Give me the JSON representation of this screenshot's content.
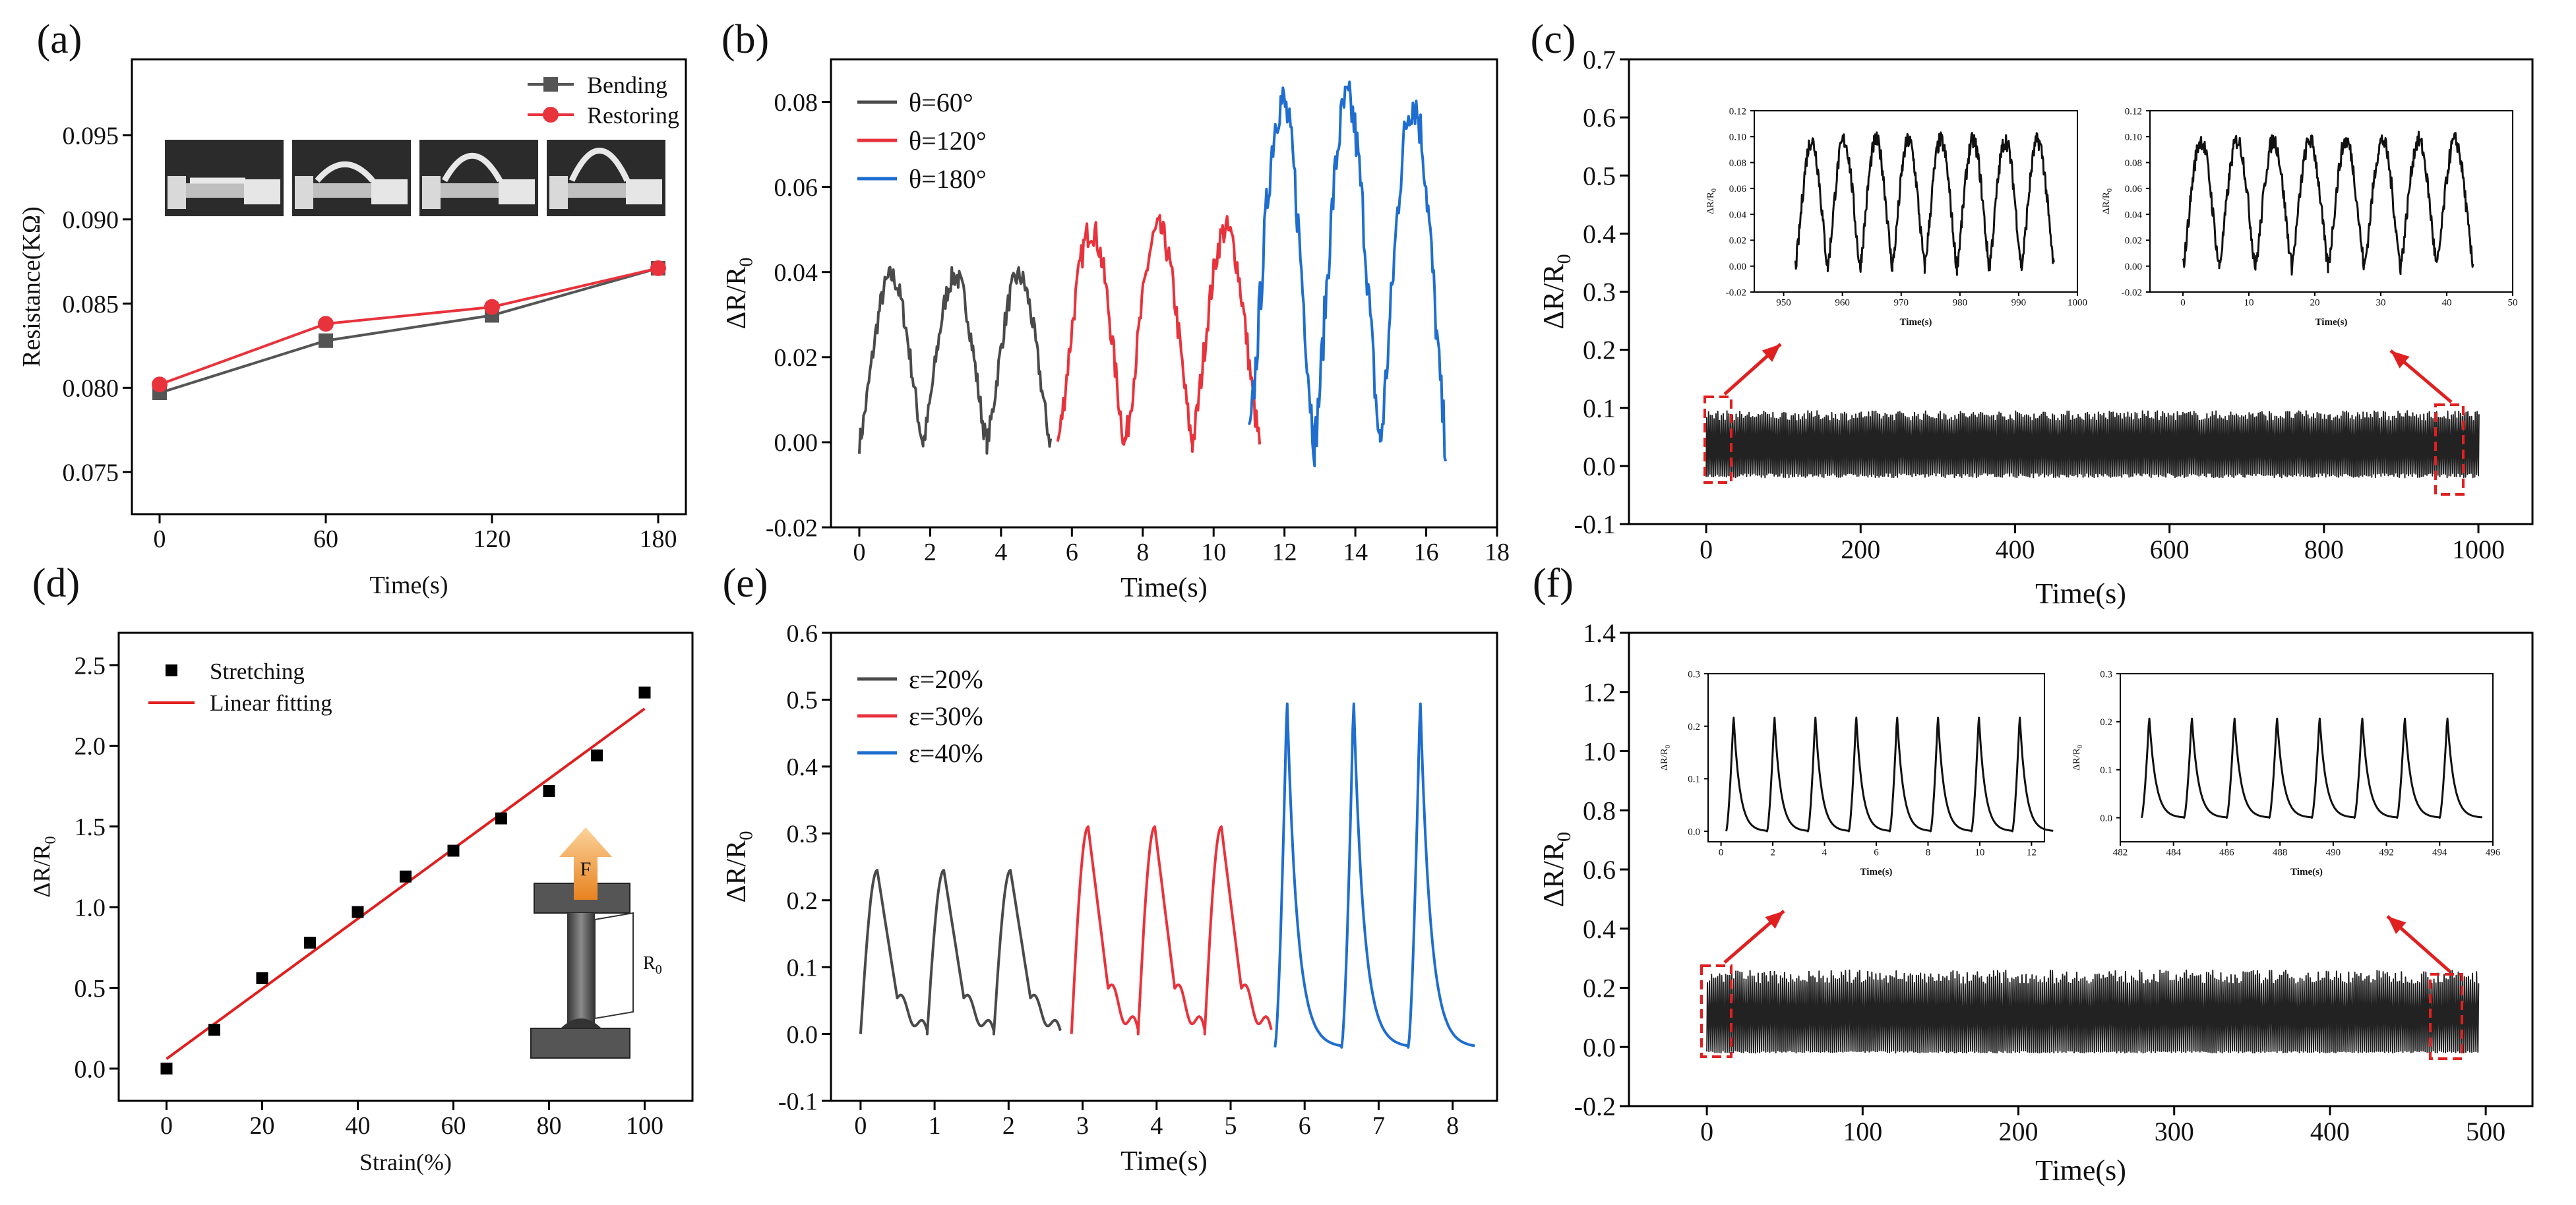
{
  "colors": {
    "black": "#222222",
    "dark_gray": "#4a4a4a",
    "red": "#e8333c",
    "blue": "#1f6ecf",
    "bend_gray": "#555555",
    "fit_red": "#e01f1f",
    "callout_red": "#e02020"
  },
  "chart_data": [
    {
      "panel": "(a)",
      "type": "line",
      "xlabel": "Time(s)",
      "ylabel": "Resistance(KΩ)",
      "xlim": [
        -10,
        190
      ],
      "ylim": [
        0.0725,
        0.0995
      ],
      "xticks": [
        0,
        60,
        120,
        180
      ],
      "yticks": [
        0.075,
        0.08,
        0.085,
        0.09,
        0.095
      ],
      "ytick_labels": [
        "0.075",
        "0.080",
        "0.085",
        "0.090",
        "0.095"
      ],
      "legend_position": "top-right",
      "inset_photos": 4,
      "series": [
        {
          "name": "Bending",
          "marker": "square",
          "color": "#555555",
          "x": [
            0,
            60,
            120,
            180
          ],
          "values": [
            0.0797,
            0.0828,
            0.0843,
            0.0871
          ]
        },
        {
          "name": "Restoring",
          "marker": "circle",
          "color": "#e8333c",
          "x": [
            0,
            60,
            120,
            180
          ],
          "values": [
            0.0802,
            0.0838,
            0.0848,
            0.0871
          ]
        }
      ]
    },
    {
      "panel": "(b)",
      "type": "line",
      "xlabel": "Time(s)",
      "ylabel": "ΔR/R0",
      "xlim": [
        -0.8,
        18
      ],
      "ylim": [
        -0.02,
        0.09
      ],
      "xticks": [
        0,
        2,
        4,
        6,
        8,
        10,
        12,
        14,
        16,
        18
      ],
      "yticks": [
        -0.02,
        0.0,
        0.02,
        0.04,
        0.06,
        0.08
      ],
      "ytick_labels": [
        "-0.02",
        "0.00",
        "0.02",
        "0.04",
        "0.06",
        "0.08"
      ],
      "legend_position": "top-left",
      "series": [
        {
          "name": "θ=60°",
          "color": "#4a4a4a",
          "t0": 0.0,
          "period": 1.8,
          "peaks": 3,
          "peak": 0.039,
          "base": 0.0
        },
        {
          "name": "θ=120°",
          "color": "#e8333c",
          "t0": 5.6,
          "period": 1.9,
          "peaks": 3,
          "peak": 0.05,
          "base": 0.0
        },
        {
          "name": "θ=180°",
          "color": "#1f6ecf",
          "t0": 11.0,
          "period": 1.85,
          "peaks": 3,
          "peak": 0.08,
          "base": 0.0
        }
      ]
    },
    {
      "panel": "(c)",
      "type": "line",
      "xlabel": "Time(s)",
      "ylabel": "ΔR/R0",
      "xlim": [
        -100,
        1070
      ],
      "ylim": [
        -0.1,
        0.7
      ],
      "xticks": [
        0,
        200,
        400,
        600,
        800,
        1000
      ],
      "yticks": [
        -0.1,
        0.0,
        0.1,
        0.2,
        0.3,
        0.4,
        0.5,
        0.6,
        0.7
      ],
      "ytick_labels": [
        "-0.1",
        "0.0",
        "0.1",
        "0.2",
        "0.3",
        "0.4",
        "0.5",
        "0.6",
        "0.7"
      ],
      "series": [
        {
          "name": "",
          "color": "#222222",
          "x_range": [
            0,
            1000
          ],
          "min": -0.02,
          "max": 0.095
        }
      ],
      "insets": [
        {
          "xlabel": "Time(s)",
          "ylabel": "ΔR/R0",
          "xlim": [
            945,
            1000
          ],
          "ylim": [
            -0.02,
            0.12
          ],
          "xticks": [
            950,
            960,
            970,
            980,
            990,
            1000
          ],
          "yticks": [
            -0.02,
            0.0,
            0.02,
            0.04,
            0.06,
            0.08,
            0.1,
            0.12
          ],
          "ytick_labels": [
            "-0.02",
            "0.00",
            "0.02",
            "0.04",
            "0.06",
            "0.08",
            "0.10",
            "0.12"
          ],
          "t0": 952,
          "period": 5.5,
          "peaks": 8,
          "peak": 0.097
        },
        {
          "xlabel": "Time(s)",
          "ylabel": "ΔR/R0",
          "xlim": [
            -5,
            50
          ],
          "ylim": [
            -0.02,
            0.12
          ],
          "xticks": [
            0,
            10,
            20,
            30,
            40,
            50
          ],
          "yticks": [
            -0.02,
            0.0,
            0.02,
            0.04,
            0.06,
            0.08,
            0.1,
            0.12
          ],
          "ytick_labels": [
            "-0.02",
            "0.00",
            "0.02",
            "0.04",
            "0.06",
            "0.08",
            "0.10",
            "0.12"
          ],
          "t0": 0,
          "period": 5.5,
          "peaks": 8,
          "peak": 0.097
        }
      ]
    },
    {
      "panel": "(d)",
      "type": "scatter",
      "xlabel": "Strain(%)",
      "ylabel": "ΔR/R0",
      "xlim": [
        -10,
        110
      ],
      "ylim": [
        -0.2,
        2.7
      ],
      "xticks": [
        0,
        20,
        40,
        60,
        80,
        100
      ],
      "yticks": [
        0.0,
        0.5,
        1.0,
        1.5,
        2.0,
        2.5
      ],
      "ytick_labels": [
        "0.0",
        "0.5",
        "1.0",
        "1.5",
        "2.0",
        "2.5"
      ],
      "legend_position": "top-left",
      "inset_label": "R0",
      "force_label": "F",
      "series": [
        {
          "name": "Stretching",
          "marker": "square",
          "color": "#000000",
          "x": [
            0,
            10,
            20,
            30,
            40,
            50,
            60,
            70,
            80,
            90,
            100
          ],
          "values": [
            0.0,
            0.24,
            0.56,
            0.78,
            0.97,
            1.19,
            1.35,
            1.55,
            1.72,
            1.94,
            2.33
          ]
        },
        {
          "name": "Linear fitting",
          "color": "#e01f1f",
          "x": [
            0,
            100
          ],
          "values": [
            0.06,
            2.23
          ]
        }
      ]
    },
    {
      "panel": "(e)",
      "type": "line",
      "xlabel": "Time(s)",
      "ylabel": "ΔR/R0",
      "xlim": [
        -0.4,
        8.6
      ],
      "ylim": [
        -0.1,
        0.6
      ],
      "xticks": [
        0,
        1,
        2,
        3,
        4,
        5,
        6,
        7,
        8
      ],
      "yticks": [
        -0.1,
        0.0,
        0.1,
        0.2,
        0.3,
        0.4,
        0.5,
        0.6
      ],
      "ytick_labels": [
        "-0.1",
        "0.0",
        "0.1",
        "0.2",
        "0.3",
        "0.4",
        "0.5",
        "0.6"
      ],
      "legend_position": "top-left",
      "series": [
        {
          "name": "ε=20%",
          "color": "#4a4a4a",
          "t0": 0.0,
          "period": 0.9,
          "peaks": 3,
          "peak": 0.245,
          "base": 0.0
        },
        {
          "name": "ε=30%",
          "color": "#e8333c",
          "t0": 2.85,
          "period": 0.9,
          "peaks": 3,
          "peak": 0.31,
          "base": 0.0
        },
        {
          "name": "ε=40%",
          "color": "#1f6ecf",
          "t0": 5.6,
          "period": 0.9,
          "peaks": 3,
          "peak": 0.515,
          "base": -0.02
        }
      ]
    },
    {
      "panel": "(f)",
      "type": "line",
      "xlabel": "Time(s)",
      "ylabel": "ΔR/R0",
      "xlim": [
        -50,
        530
      ],
      "ylim": [
        -0.2,
        1.4
      ],
      "xticks": [
        0,
        100,
        200,
        300,
        400,
        500
      ],
      "yticks": [
        -0.2,
        0.0,
        0.2,
        0.4,
        0.6,
        0.8,
        1.0,
        1.2,
        1.4
      ],
      "ytick_labels": [
        "-0.2",
        "0.0",
        "0.2",
        "0.4",
        "0.6",
        "0.8",
        "1.0",
        "1.2",
        "1.4"
      ],
      "series": [
        {
          "name": "",
          "color": "#222222",
          "x_range": [
            0,
            495
          ],
          "min": -0.02,
          "max": 0.26
        }
      ],
      "insets": [
        {
          "xlabel": "Time(s)",
          "ylabel": "ΔR/R0",
          "xlim": [
            -0.5,
            12.5
          ],
          "ylim": [
            -0.02,
            0.3
          ],
          "xticks": [
            0,
            2,
            4,
            6,
            8,
            10,
            12
          ],
          "yticks": [
            0.0,
            0.1,
            0.2,
            0.3
          ],
          "ytick_labels": [
            "0.0",
            "0.1",
            "0.2",
            "0.3"
          ],
          "t0": 0.2,
          "period": 1.58,
          "peaks": 8,
          "peak": 0.225
        },
        {
          "xlabel": "Time(s)",
          "ylabel": "ΔR/R0",
          "xlim": [
            482,
            496
          ],
          "ylim": [
            -0.05,
            0.3
          ],
          "xticks": [
            482,
            484,
            486,
            488,
            490,
            492,
            494,
            496
          ],
          "yticks": [
            0.0,
            0.1,
            0.2,
            0.3
          ],
          "ytick_labels": [
            "0.0",
            "0.1",
            "0.2",
            "0.3"
          ],
          "t0": 482.8,
          "period": 1.6,
          "peaks": 8,
          "peak": 0.215
        }
      ]
    }
  ]
}
